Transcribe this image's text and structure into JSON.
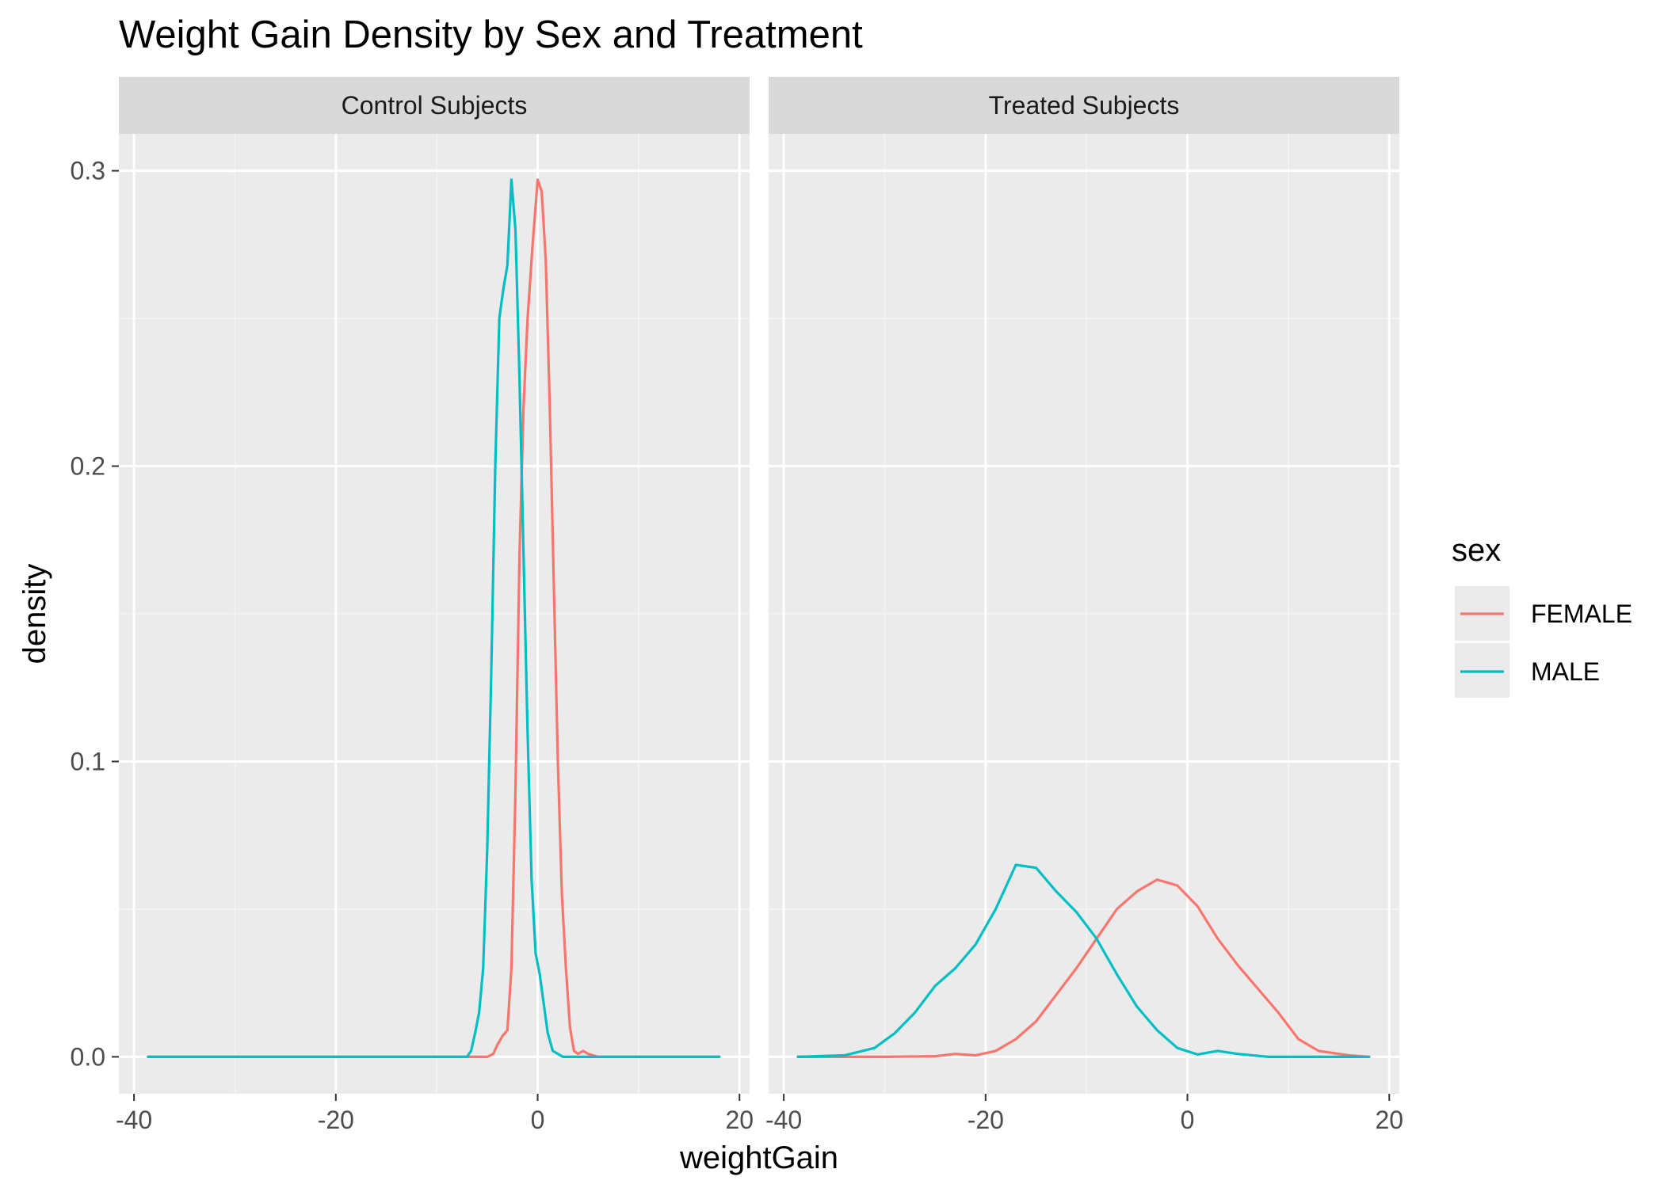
{
  "chart_data": {
    "type": "line",
    "title": "Weight Gain Density by Sex and Treatment",
    "xlabel": "weightGain",
    "ylabel": "density",
    "xlim": [
      -40,
      20
    ],
    "ylim": [
      0,
      0.3
    ],
    "x_ticks": [
      -40,
      -20,
      0,
      20
    ],
    "y_ticks": [
      0.0,
      0.1,
      0.2,
      0.3
    ],
    "x_tick_labels": [
      "-40",
      "-20",
      "0",
      "20"
    ],
    "y_tick_labels": [
      "0.0",
      "0.1",
      "0.2",
      "0.3"
    ],
    "grid": true,
    "legend": {
      "title": "sex",
      "position": "right",
      "entries": [
        {
          "label": "FEMALE",
          "color": "#F8766D"
        },
        {
          "label": "MALE",
          "color": "#00BFC4"
        }
      ]
    },
    "panels": [
      {
        "label": "Control Subjects",
        "series": [
          {
            "name": "FEMALE",
            "color": "#F8766D",
            "points": [
              [
                -38.6,
                0
              ],
              [
                -6,
                0
              ],
              [
                -5,
                0
              ],
              [
                -4.4,
                0.001
              ],
              [
                -4,
                0.004
              ],
              [
                -3.5,
                0.007
              ],
              [
                -3,
                0.009
              ],
              [
                -2.6,
                0.03
              ],
              [
                -2.2,
                0.09
              ],
              [
                -1.8,
                0.17
              ],
              [
                -1.4,
                0.22
              ],
              [
                -1,
                0.25
              ],
              [
                -0.5,
                0.275
              ],
              [
                0,
                0.297
              ],
              [
                0.4,
                0.293
              ],
              [
                0.8,
                0.27
              ],
              [
                1.2,
                0.22
              ],
              [
                1.6,
                0.16
              ],
              [
                2,
                0.1
              ],
              [
                2.4,
                0.055
              ],
              [
                2.8,
                0.03
              ],
              [
                3.2,
                0.01
              ],
              [
                3.6,
                0.002
              ],
              [
                4,
                0.001
              ],
              [
                4.5,
                0.002
              ],
              [
                5,
                0.001
              ],
              [
                6,
                0
              ],
              [
                18,
                0
              ]
            ]
          },
          {
            "name": "MALE",
            "color": "#00BFC4",
            "points": [
              [
                -38.6,
                0
              ],
              [
                -7,
                0
              ],
              [
                -6.6,
                0.002
              ],
              [
                -6.2,
                0.008
              ],
              [
                -5.8,
                0.015
              ],
              [
                -5.4,
                0.03
              ],
              [
                -5,
                0.07
              ],
              [
                -4.6,
                0.13
              ],
              [
                -4.2,
                0.2
              ],
              [
                -3.8,
                0.25
              ],
              [
                -3.4,
                0.26
              ],
              [
                -3,
                0.268
              ],
              [
                -2.6,
                0.297
              ],
              [
                -2.2,
                0.28
              ],
              [
                -1.8,
                0.23
              ],
              [
                -1.4,
                0.17
              ],
              [
                -1,
                0.11
              ],
              [
                -0.6,
                0.06
              ],
              [
                -0.2,
                0.035
              ],
              [
                0.2,
                0.028
              ],
              [
                0.6,
                0.018
              ],
              [
                1,
                0.008
              ],
              [
                1.5,
                0.002
              ],
              [
                2.5,
                0
              ],
              [
                18,
                0
              ]
            ]
          }
        ]
      },
      {
        "label": "Treated Subjects",
        "series": [
          {
            "name": "FEMALE",
            "color": "#F8766D",
            "points": [
              [
                -38.6,
                0
              ],
              [
                -30,
                0
              ],
              [
                -25,
                0.0002
              ],
              [
                -23,
                0.001
              ],
              [
                -21,
                0.0005
              ],
              [
                -19,
                0.002
              ],
              [
                -17,
                0.006
              ],
              [
                -15,
                0.012
              ],
              [
                -13,
                0.021
              ],
              [
                -11,
                0.03
              ],
              [
                -9,
                0.04
              ],
              [
                -7,
                0.05
              ],
              [
                -5,
                0.056
              ],
              [
                -3,
                0.06
              ],
              [
                -1,
                0.058
              ],
              [
                1,
                0.051
              ],
              [
                3,
                0.04
              ],
              [
                5,
                0.031
              ],
              [
                7,
                0.023
              ],
              [
                9,
                0.015
              ],
              [
                11,
                0.006
              ],
              [
                13,
                0.002
              ],
              [
                16,
                0.0005
              ],
              [
                18,
                0
              ]
            ]
          },
          {
            "name": "MALE",
            "color": "#00BFC4",
            "points": [
              [
                -38.6,
                0
              ],
              [
                -34,
                0.0005
              ],
              [
                -31,
                0.003
              ],
              [
                -29,
                0.008
              ],
              [
                -27,
                0.015
              ],
              [
                -25,
                0.024
              ],
              [
                -23,
                0.03
              ],
              [
                -21,
                0.038
              ],
              [
                -19,
                0.05
              ],
              [
                -17,
                0.065
              ],
              [
                -15,
                0.064
              ],
              [
                -13,
                0.056
              ],
              [
                -11,
                0.049
              ],
              [
                -9,
                0.04
              ],
              [
                -7,
                0.028
              ],
              [
                -5,
                0.017
              ],
              [
                -3,
                0.009
              ],
              [
                -1,
                0.003
              ],
              [
                1,
                0.0008
              ],
              [
                3,
                0.002
              ],
              [
                5,
                0.001
              ],
              [
                8,
                0
              ],
              [
                18,
                0
              ]
            ]
          }
        ]
      }
    ]
  }
}
